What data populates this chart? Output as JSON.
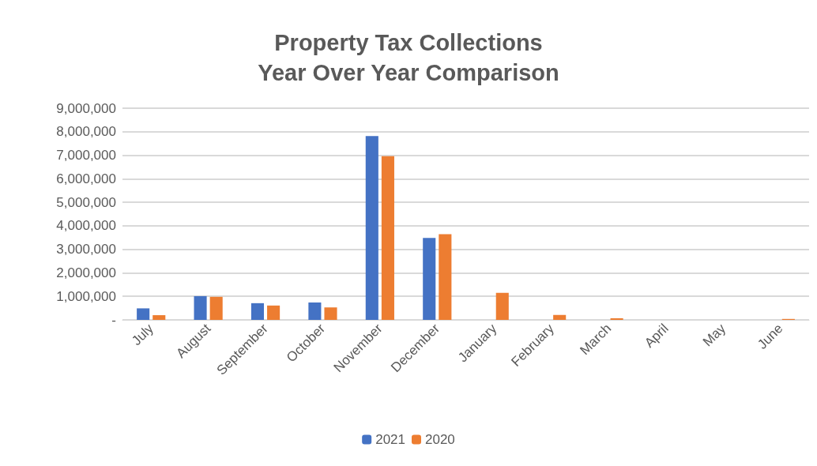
{
  "chart_data": {
    "type": "bar",
    "title": "Property Tax Collections\nYear Over Year Comparison",
    "categories": [
      "July",
      "August",
      "September",
      "October",
      "November",
      "December",
      "January",
      "February",
      "March",
      "April",
      "May",
      "June"
    ],
    "series": [
      {
        "name": "2021",
        "color": "#4472c4",
        "values": [
          490000,
          1010000,
          710000,
          740000,
          7820000,
          3480000,
          null,
          null,
          null,
          null,
          null,
          null
        ]
      },
      {
        "name": "2020",
        "color": "#ed7d31",
        "values": [
          200000,
          980000,
          610000,
          530000,
          6960000,
          3640000,
          1150000,
          210000,
          70000,
          null,
          null,
          40000
        ]
      }
    ],
    "ylim": [
      0,
      9000000
    ],
    "yticks": [
      {
        "value": 0,
        "label": "-"
      },
      {
        "value": 1000000,
        "label": "1,000,000"
      },
      {
        "value": 2000000,
        "label": "2,000,000"
      },
      {
        "value": 3000000,
        "label": "3,000,000"
      },
      {
        "value": 4000000,
        "label": "4,000,000"
      },
      {
        "value": 5000000,
        "label": "5,000,000"
      },
      {
        "value": 6000000,
        "label": "6,000,000"
      },
      {
        "value": 7000000,
        "label": "7,000,000"
      },
      {
        "value": 8000000,
        "label": "8,000,000"
      },
      {
        "value": 9000000,
        "label": "9,000,000"
      }
    ],
    "grid": "y",
    "legend": "bottom"
  }
}
